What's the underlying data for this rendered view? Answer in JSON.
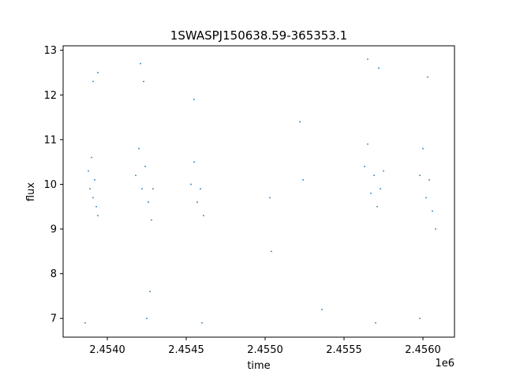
{
  "chart_data": {
    "type": "scatter",
    "title": "1SWASPJ150638.59-365353.1",
    "xlabel": "time",
    "ylabel": "flux",
    "x_offset_label": "1e6",
    "xlim": [
      2.45372,
      2.4562
    ],
    "ylim": [
      6.58,
      13.1
    ],
    "x_ticks": [
      2.454,
      2.4545,
      2.455,
      2.4555,
      2.456
    ],
    "x_tick_labels": [
      "2.4540",
      "2.4545",
      "2.4550",
      "2.4555",
      "2.4560"
    ],
    "y_ticks": [
      7,
      8,
      9,
      10,
      11,
      12,
      13
    ],
    "y_tick_labels": [
      "7",
      "8",
      "9",
      "10",
      "11",
      "12",
      "13"
    ],
    "grid": false,
    "marker_color": "#1f77b4",
    "series": [
      {
        "values": [
          {
            "x": 2.45388,
            "y": 10.3
          },
          {
            "x": 2.45389,
            "y": 9.9
          },
          {
            "x": 2.4539,
            "y": 10.6
          },
          {
            "x": 2.45391,
            "y": 9.7
          },
          {
            "x": 2.45392,
            "y": 10.1
          },
          {
            "x": 2.45393,
            "y": 9.5
          },
          {
            "x": 2.45394,
            "y": 9.3
          },
          {
            "x": 2.45386,
            "y": 6.9
          },
          {
            "x": 2.45391,
            "y": 12.3
          },
          {
            "x": 2.45394,
            "y": 12.5
          },
          {
            "x": 2.45418,
            "y": 10.2
          },
          {
            "x": 2.4542,
            "y": 10.8
          },
          {
            "x": 2.45422,
            "y": 9.9
          },
          {
            "x": 2.45424,
            "y": 10.4
          },
          {
            "x": 2.45426,
            "y": 9.6
          },
          {
            "x": 2.45428,
            "y": 9.2
          },
          {
            "x": 2.45429,
            "y": 9.9
          },
          {
            "x": 2.45421,
            "y": 12.7
          },
          {
            "x": 2.45423,
            "y": 12.3
          },
          {
            "x": 2.45425,
            "y": 7.0
          },
          {
            "x": 2.45427,
            "y": 7.6
          },
          {
            "x": 2.45453,
            "y": 10.0
          },
          {
            "x": 2.45455,
            "y": 10.5
          },
          {
            "x": 2.45457,
            "y": 9.6
          },
          {
            "x": 2.45459,
            "y": 9.9
          },
          {
            "x": 2.45461,
            "y": 9.3
          },
          {
            "x": 2.45455,
            "y": 11.9
          },
          {
            "x": 2.4546,
            "y": 6.9
          },
          {
            "x": 2.45503,
            "y": 9.7
          },
          {
            "x": 2.45504,
            "y": 8.5
          },
          {
            "x": 2.45522,
            "y": 11.4
          },
          {
            "x": 2.45524,
            "y": 10.1
          },
          {
            "x": 2.45536,
            "y": 7.2
          },
          {
            "x": 2.45563,
            "y": 10.4
          },
          {
            "x": 2.45565,
            "y": 10.9
          },
          {
            "x": 2.45567,
            "y": 9.8
          },
          {
            "x": 2.45569,
            "y": 10.2
          },
          {
            "x": 2.45571,
            "y": 9.5
          },
          {
            "x": 2.45573,
            "y": 9.9
          },
          {
            "x": 2.45575,
            "y": 10.3
          },
          {
            "x": 2.45565,
            "y": 12.8
          },
          {
            "x": 2.45572,
            "y": 12.6
          },
          {
            "x": 2.4557,
            "y": 6.9
          },
          {
            "x": 2.45598,
            "y": 10.2
          },
          {
            "x": 2.456,
            "y": 10.8
          },
          {
            "x": 2.45602,
            "y": 9.7
          },
          {
            "x": 2.45604,
            "y": 10.1
          },
          {
            "x": 2.45606,
            "y": 9.4
          },
          {
            "x": 2.45608,
            "y": 9.0
          },
          {
            "x": 2.45603,
            "y": 12.4
          },
          {
            "x": 2.45598,
            "y": 7.0
          }
        ]
      }
    ]
  }
}
